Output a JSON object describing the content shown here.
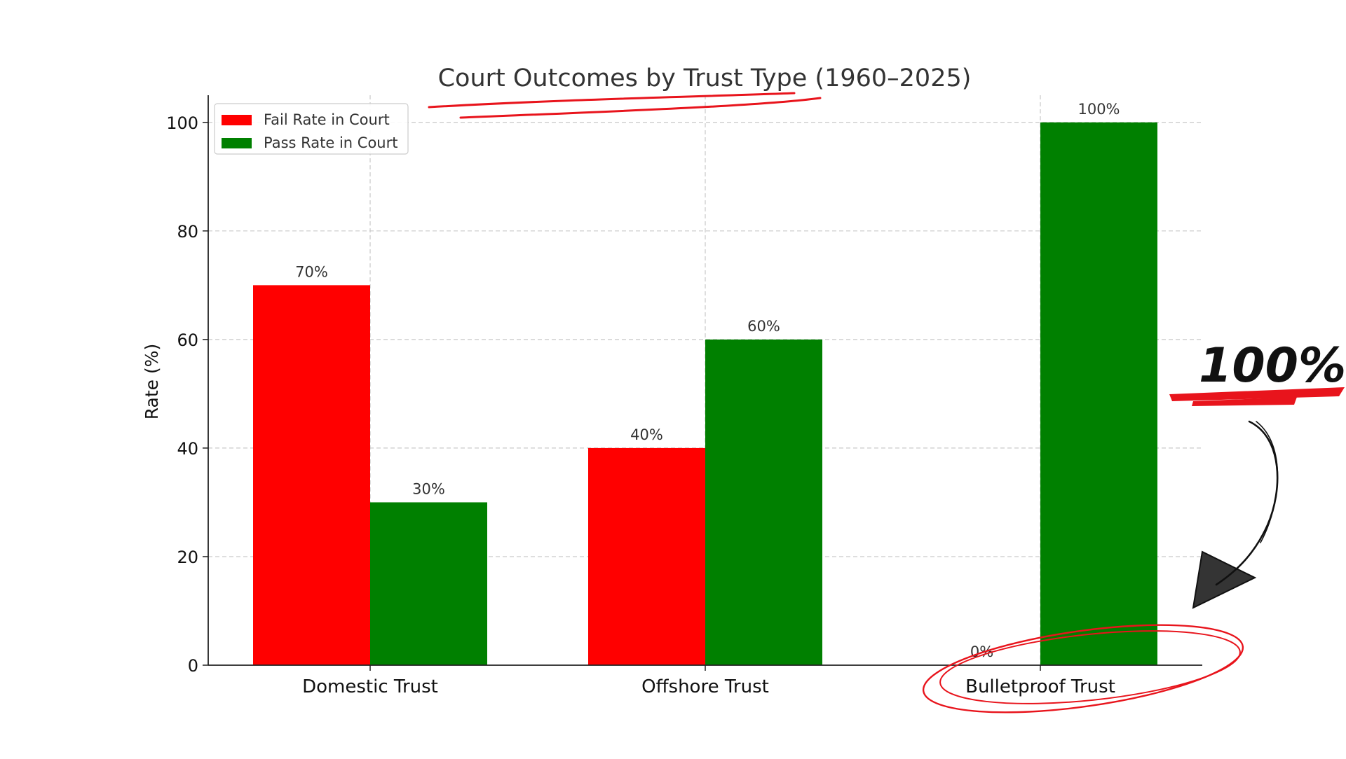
{
  "chart_data": {
    "type": "bar",
    "title": "Court Outcomes by Trust Type (1960–2025)",
    "xlabel": "",
    "ylabel": "Rate (%)",
    "categories": [
      "Domestic Trust",
      "Offshore Trust",
      "Bulletproof Trust"
    ],
    "series": [
      {
        "name": "Fail Rate in Court",
        "color": "#ff0000",
        "values": [
          70,
          40,
          0
        ]
      },
      {
        "name": "Pass Rate in Court",
        "color": "#008000",
        "values": [
          30,
          60,
          100
        ]
      }
    ],
    "data_labels": [
      [
        "70%",
        "40%",
        "0%"
      ],
      [
        "30%",
        "60%",
        "100%"
      ]
    ],
    "ylim": [
      0,
      105
    ],
    "yticks": [
      0,
      20,
      40,
      60,
      80,
      100
    ],
    "grid": true,
    "legend_position": "top-left"
  },
  "annotations": {
    "callout_text": "100%",
    "accent_color": "#e8141c",
    "ink_color": "#111111",
    "highlighted_category": "Bulletproof Trust"
  }
}
